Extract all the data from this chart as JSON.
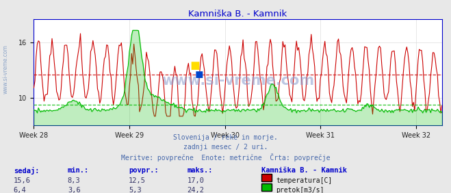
{
  "title": "Kamniška B. - Kamnik",
  "title_color": "#0000cc",
  "bg_color": "#e8e8e8",
  "plot_bg_color": "#ffffff",
  "x_tick_labels": [
    "Week 28",
    "Week 29",
    "Week 30",
    "Week 31",
    "Week 32"
  ],
  "x_tick_positions": [
    0,
    84,
    168,
    252,
    336
  ],
  "avg_temp": 12.5,
  "avg_flow_scaled": 5.3,
  "temp_color": "#cc0000",
  "flow_color": "#00bb00",
  "watermark": "www.si-vreme.com",
  "footer_line1": "Slovenija / reke in morje.",
  "footer_line2": "zadnji mesec / 2 uri.",
  "footer_line3": "Meritve: povprečne  Enote: metrične  Črta: povprečje",
  "footer_color": "#4466aa",
  "table_headers": [
    "sedaj:",
    "min.:",
    "povpr.:",
    "maks.:"
  ],
  "table_header_color": "#0000cc",
  "table_row1": [
    "15,6",
    "8,3",
    "12,5",
    "17,0"
  ],
  "table_row2": [
    "6,4",
    "3,6",
    "5,3",
    "24,2"
  ],
  "legend_title": "Kamniška B. - Kamnik",
  "legend_label1": "temperatura[C]",
  "legend_label2": "pretok[m3/s]",
  "n_points": 360,
  "grid_color": "#dddddd",
  "axis_color": "#0000cc",
  "temp_ylim": [
    7.0,
    18.5
  ],
  "flow_ylim": [
    0,
    27
  ],
  "y_ticks": [
    10,
    16
  ]
}
